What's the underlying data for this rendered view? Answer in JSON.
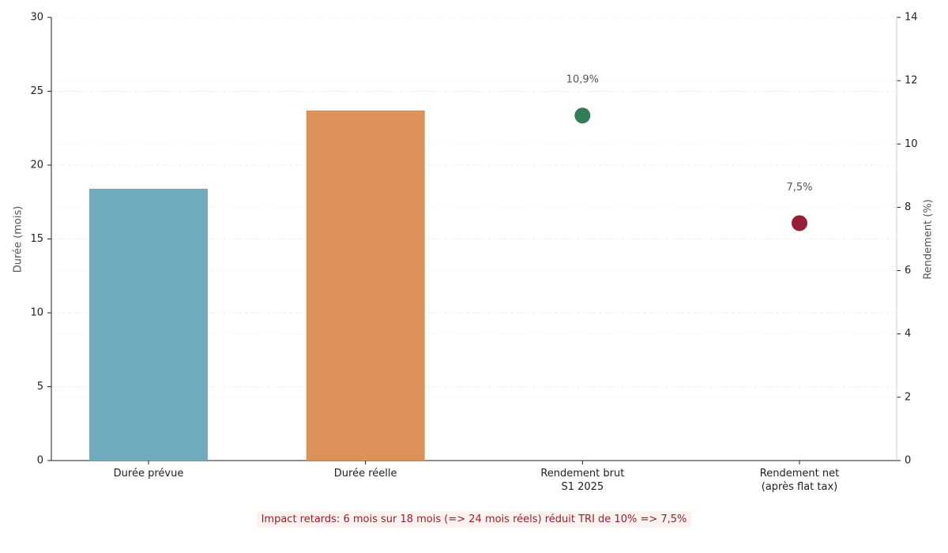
{
  "chart_data": {
    "type": "bar",
    "categories": [
      "Durée prévue",
      "Durée réelle",
      "Rendement brut\nS1 2025",
      "Rendement net\n(après flat tax)"
    ],
    "series": [
      {
        "type": "bar",
        "colors": [
          "#71abbe",
          "#db9157",
          null,
          null
        ],
        "values": [
          18.4,
          23.7,
          null,
          null
        ]
      },
      {
        "type": "scatter",
        "axis": "y2",
        "colors": [
          null,
          null,
          "#327d57",
          "#981d36"
        ],
        "values": [
          null,
          null,
          10.9,
          7.5
        ],
        "value_labels": [
          null,
          null,
          "10,9%",
          "7,5%"
        ]
      }
    ],
    "y_label": "Durée (mois)",
    "y2_label": "Rendement (%)",
    "ylim": [
      0,
      30
    ],
    "yticks": [
      0,
      5,
      10,
      15,
      20,
      25,
      30
    ],
    "y2lim": [
      0,
      14
    ],
    "y2ticks": [
      0,
      2,
      4,
      6,
      8,
      10,
      12,
      14
    ],
    "grid": true,
    "annotation": "Impact retards: 6 mois sur 18 mois (=> 24 mois réels) réduit TRI de 10% => 7,5%"
  }
}
